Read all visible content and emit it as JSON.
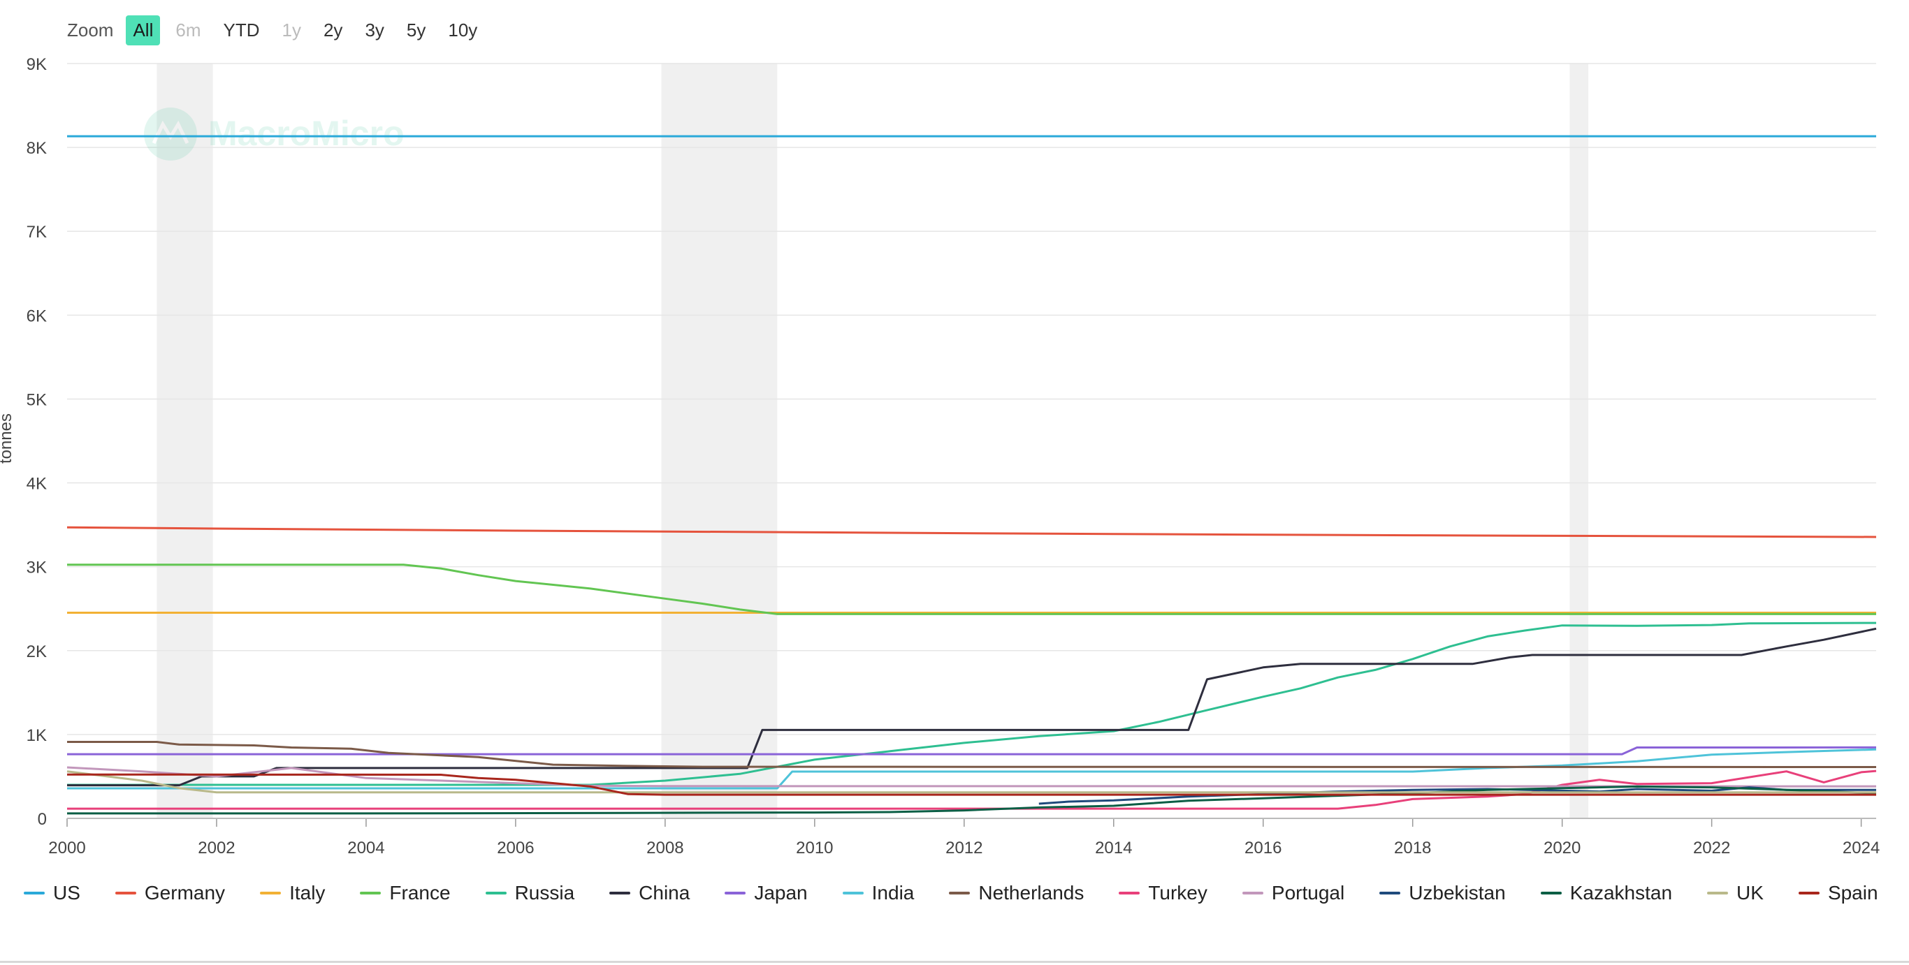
{
  "zoom": {
    "label": "Zoom",
    "buttons": [
      {
        "label": "All",
        "state": "active"
      },
      {
        "label": "6m",
        "state": "disabled"
      },
      {
        "label": "YTD",
        "state": "normal"
      },
      {
        "label": "1y",
        "state": "disabled"
      },
      {
        "label": "2y",
        "state": "normal"
      },
      {
        "label": "3y",
        "state": "normal"
      },
      {
        "label": "5y",
        "state": "normal"
      },
      {
        "label": "10y",
        "state": "normal"
      }
    ]
  },
  "watermark": "MacroMicro",
  "chart_data": {
    "type": "line",
    "ylabel": "tonnes",
    "xlabel": "",
    "xlim": [
      2000,
      2024.2
    ],
    "ylim": [
      0,
      9000
    ],
    "x_ticks": [
      "2000",
      "2002",
      "2004",
      "2006",
      "2008",
      "2010",
      "2012",
      "2014",
      "2016",
      "2018",
      "2020",
      "2022",
      "2024"
    ],
    "y_ticks": [
      "0",
      "1K",
      "2K",
      "3K",
      "4K",
      "5K",
      "6K",
      "7K",
      "8K",
      "9K"
    ],
    "grid": true,
    "legend_position": "bottom",
    "recession_bands": [
      [
        2001.2,
        2001.95
      ],
      [
        2007.95,
        2009.5
      ],
      [
        2020.1,
        2020.35
      ]
    ],
    "series": [
      {
        "name": "US",
        "color": "#2aa9d9",
        "points": [
          [
            2000,
            8133
          ],
          [
            2024.2,
            8133
          ]
        ]
      },
      {
        "name": "Germany",
        "color": "#e5533d",
        "points": [
          [
            2000,
            3470
          ],
          [
            2002,
            3455
          ],
          [
            2006,
            3430
          ],
          [
            2010,
            3410
          ],
          [
            2014,
            3390
          ],
          [
            2018,
            3375
          ],
          [
            2024.2,
            3355
          ]
        ]
      },
      {
        "name": "Italy",
        "color": "#f2b134",
        "points": [
          [
            2000,
            2452
          ],
          [
            2024.2,
            2452
          ]
        ]
      },
      {
        "name": "France",
        "color": "#62c552",
        "points": [
          [
            2000,
            3025
          ],
          [
            2004.5,
            3025
          ],
          [
            2005.0,
            2980
          ],
          [
            2005.5,
            2900
          ],
          [
            2006,
            2830
          ],
          [
            2007,
            2740
          ],
          [
            2008,
            2620
          ],
          [
            2008.5,
            2560
          ],
          [
            2009,
            2490
          ],
          [
            2009.5,
            2436
          ],
          [
            2024.2,
            2436
          ]
        ]
      },
      {
        "name": "Russia",
        "color": "#2ebf91",
        "points": [
          [
            2000,
            400
          ],
          [
            2007,
            400
          ],
          [
            2008,
            450
          ],
          [
            2009,
            530
          ],
          [
            2010,
            700
          ],
          [
            2011,
            800
          ],
          [
            2012,
            900
          ],
          [
            2013,
            980
          ],
          [
            2014,
            1040
          ],
          [
            2014.6,
            1150
          ],
          [
            2015.2,
            1280
          ],
          [
            2016,
            1450
          ],
          [
            2016.5,
            1550
          ],
          [
            2017,
            1680
          ],
          [
            2017.5,
            1770
          ],
          [
            2018,
            1900
          ],
          [
            2018.5,
            2050
          ],
          [
            2019,
            2170
          ],
          [
            2019.5,
            2240
          ],
          [
            2020,
            2300
          ],
          [
            2021,
            2295
          ],
          [
            2022,
            2305
          ],
          [
            2022.5,
            2325
          ],
          [
            2024.2,
            2330
          ]
        ]
      },
      {
        "name": "China",
        "color": "#2e2e3e",
        "points": [
          [
            2000,
            395
          ],
          [
            2001.5,
            395
          ],
          [
            2001.8,
            500
          ],
          [
            2002.5,
            500
          ],
          [
            2002.8,
            600
          ],
          [
            2009.1,
            600
          ],
          [
            2009.3,
            1054
          ],
          [
            2015.0,
            1054
          ],
          [
            2015.25,
            1658
          ],
          [
            2016.0,
            1800
          ],
          [
            2016.5,
            1842
          ],
          [
            2018.8,
            1842
          ],
          [
            2019.3,
            1920
          ],
          [
            2019.6,
            1948
          ],
          [
            2022.4,
            1948
          ],
          [
            2023,
            2050
          ],
          [
            2023.5,
            2130
          ],
          [
            2024.2,
            2262
          ]
        ]
      },
      {
        "name": "Japan",
        "color": "#8a63d8",
        "points": [
          [
            2000,
            765
          ],
          [
            2020.8,
            765
          ],
          [
            2021.0,
            845
          ],
          [
            2024.2,
            846
          ]
        ]
      },
      {
        "name": "India",
        "color": "#4ec3d9",
        "points": [
          [
            2000,
            358
          ],
          [
            2009.5,
            358
          ],
          [
            2009.7,
            558
          ],
          [
            2018,
            558
          ],
          [
            2019,
            600
          ],
          [
            2020,
            630
          ],
          [
            2021,
            680
          ],
          [
            2022,
            760
          ],
          [
            2023,
            790
          ],
          [
            2024.2,
            822
          ]
        ]
      },
      {
        "name": "Netherlands",
        "color": "#7b5a48",
        "points": [
          [
            2000,
            912
          ],
          [
            2001.2,
            912
          ],
          [
            2001.5,
            880
          ],
          [
            2002.5,
            870
          ],
          [
            2003,
            845
          ],
          [
            2003.8,
            830
          ],
          [
            2004.3,
            780
          ],
          [
            2005.5,
            730
          ],
          [
            2006.5,
            640
          ],
          [
            2007.5,
            625
          ],
          [
            2008.5,
            615
          ],
          [
            2024.2,
            612
          ]
        ]
      },
      {
        "name": "Turkey",
        "color": "#e8407a",
        "points": [
          [
            2000,
            116
          ],
          [
            2017,
            116
          ],
          [
            2017.5,
            160
          ],
          [
            2018,
            230
          ],
          [
            2019,
            260
          ],
          [
            2019.5,
            290
          ],
          [
            2020,
            400
          ],
          [
            2020.5,
            460
          ],
          [
            2021,
            410
          ],
          [
            2022,
            420
          ],
          [
            2022.5,
            490
          ],
          [
            2023,
            560
          ],
          [
            2023.5,
            430
          ],
          [
            2024,
            550
          ],
          [
            2024.2,
            565
          ]
        ]
      },
      {
        "name": "Portugal",
        "color": "#c297bb",
        "points": [
          [
            2000,
            608
          ],
          [
            2001,
            560
          ],
          [
            2002,
            500
          ],
          [
            2003,
            600
          ],
          [
            2004,
            480
          ],
          [
            2006,
            420
          ],
          [
            2007,
            390
          ],
          [
            2008,
            385
          ],
          [
            2024.2,
            382
          ]
        ]
      },
      {
        "name": "Uzbekistan",
        "color": "#1f4a7c",
        "points": [
          [
            2013,
            175
          ],
          [
            2013.4,
            200
          ],
          [
            2014,
            215
          ],
          [
            2015,
            260
          ],
          [
            2016,
            290
          ],
          [
            2017,
            320
          ],
          [
            2018,
            340
          ],
          [
            2019,
            350
          ],
          [
            2020,
            330
          ],
          [
            2020.5,
            320
          ],
          [
            2021,
            350
          ],
          [
            2022,
            330
          ],
          [
            2022.5,
            370
          ],
          [
            2023,
            340
          ],
          [
            2024.2,
            340
          ]
        ]
      },
      {
        "name": "Kazakhstan",
        "color": "#0b5e45",
        "points": [
          [
            2000,
            59
          ],
          [
            2005,
            60
          ],
          [
            2010,
            70
          ],
          [
            2011,
            75
          ],
          [
            2012,
            95
          ],
          [
            2013,
            130
          ],
          [
            2014,
            150
          ],
          [
            2014.5,
            180
          ],
          [
            2015,
            210
          ],
          [
            2016,
            240
          ],
          [
            2017,
            270
          ],
          [
            2018,
            300
          ],
          [
            2019,
            340
          ],
          [
            2020,
            360
          ],
          [
            2021,
            380
          ],
          [
            2022,
            370
          ],
          [
            2023,
            340
          ],
          [
            2024.2,
            300
          ]
        ]
      },
      {
        "name": "UK",
        "color": "#b9b98a",
        "points": [
          [
            2000,
            560
          ],
          [
            2001,
            450
          ],
          [
            2001.5,
            360
          ],
          [
            2002,
            310
          ],
          [
            2024.2,
            310
          ]
        ]
      },
      {
        "name": "Spain",
        "color": "#a8261c",
        "points": [
          [
            2000,
            523
          ],
          [
            2005,
            520
          ],
          [
            2005.5,
            480
          ],
          [
            2006,
            460
          ],
          [
            2007,
            380
          ],
          [
            2007.5,
            290
          ],
          [
            2008,
            282
          ],
          [
            2024.2,
            282
          ]
        ]
      }
    ]
  }
}
